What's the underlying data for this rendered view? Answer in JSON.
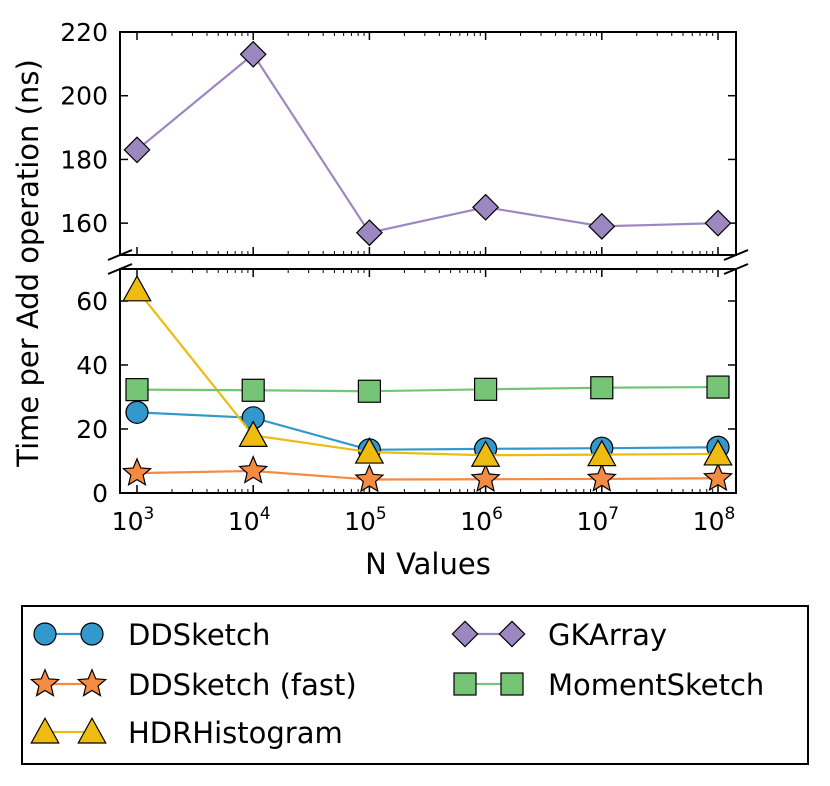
{
  "chart_data": {
    "type": "line",
    "ylabel": "Time per Add operation (ns)",
    "xlabel": "N Values",
    "x_exponents": [
      "3",
      "4",
      "5",
      "6",
      "7",
      "8"
    ],
    "x_tick_base": "10",
    "broken_axis": true,
    "top_panel": {
      "ylim": [
        150,
        220
      ],
      "ticks": [
        "160",
        "180",
        "200",
        "220"
      ]
    },
    "bottom_panel": {
      "ylim": [
        0,
        70
      ],
      "ticks": [
        "0",
        "20",
        "40",
        "60"
      ]
    },
    "series": [
      {
        "name": "DDSketch",
        "panel": "bottom",
        "marker": "circle",
        "color": "#3399cc",
        "values": [
          25.2,
          23.5,
          13.5,
          13.8,
          14.0,
          14.3
        ]
      },
      {
        "name": "DDSketch (fast)",
        "panel": "bottom",
        "marker": "star",
        "color": "#f58a42",
        "values": [
          6.2,
          6.9,
          4.2,
          4.3,
          4.4,
          4.6
        ]
      },
      {
        "name": "HDRHistogram",
        "panel": "bottom",
        "marker": "triangle",
        "color": "#eebb11",
        "values": [
          63.5,
          18.0,
          12.8,
          11.8,
          12.0,
          12.2
        ]
      },
      {
        "name": "GKArray",
        "panel": "top",
        "marker": "diamond",
        "color": "#9d87c0",
        "values": [
          183,
          213,
          157,
          165,
          159,
          160
        ]
      },
      {
        "name": "MomentSketch",
        "panel": "bottom",
        "marker": "square",
        "color": "#76c576",
        "values": [
          32.3,
          32.1,
          31.8,
          32.4,
          32.9,
          33.1
        ]
      }
    ],
    "legend": {
      "position": "bottom",
      "columns": [
        [
          "DDSketch",
          "DDSketch (fast)",
          "HDRHistogram"
        ],
        [
          "GKArray",
          "MomentSketch"
        ]
      ]
    }
  }
}
